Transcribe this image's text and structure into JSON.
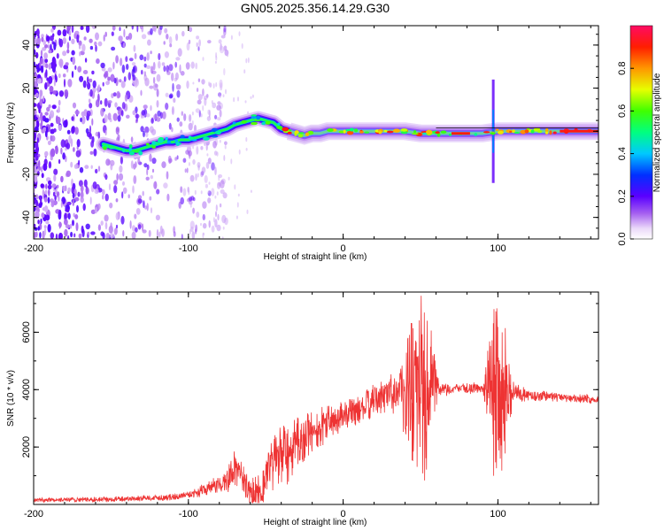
{
  "chart_data": [
    {
      "type": "heatmap",
      "title": "GN05.2025.356.14.29.G30",
      "xlabel": "Height of straight line (km)",
      "ylabel": "Frequency (Hz)",
      "xlim": [
        -200,
        165
      ],
      "ylim": [
        -50,
        49
      ],
      "xticks": [
        -200,
        -100,
        0,
        100
      ],
      "yticks": [
        -40,
        -20,
        0,
        20,
        40
      ],
      "ridge": {
        "x": [
          -155,
          -150,
          -145,
          -140,
          -135,
          -130,
          -125,
          -120,
          -115,
          -110,
          -105,
          -100,
          -95,
          -90,
          -85,
          -80,
          -75,
          -70,
          -65,
          -60,
          -55,
          -50,
          -45,
          -40,
          -35,
          -30,
          -25,
          -20,
          -15,
          -10,
          -5,
          0,
          10,
          20,
          30,
          40,
          50,
          60,
          70,
          80,
          90,
          100,
          110,
          120,
          130,
          140,
          150,
          160,
          165
        ],
        "freq": [
          -6,
          -7,
          -8,
          -9,
          -9,
          -8,
          -7,
          -6,
          -5,
          -5,
          -4,
          -4,
          -3,
          -2,
          -1,
          0,
          1,
          3,
          4,
          5,
          6,
          5,
          4,
          1,
          0,
          -1,
          -2,
          -1,
          -1,
          0,
          0,
          0,
          0,
          0,
          0,
          0,
          -1,
          -1,
          -1,
          -1,
          -1,
          0,
          0,
          0,
          0,
          0,
          0,
          0,
          0
        ]
      },
      "colorbar": {
        "label": "Normalized spectral amplitude",
        "range": [
          0,
          1
        ],
        "ticks": [
          0.0,
          0.2,
          0.4,
          0.6,
          0.8
        ],
        "tick_labels": [
          "0.0",
          "0.2",
          "0.4",
          "0.6",
          "0.8"
        ]
      }
    },
    {
      "type": "line",
      "xlabel": "Height of straight line (km)",
      "ylabel": "SNR (10 * v/v)",
      "xlim": [
        -200,
        165
      ],
      "ylim": [
        0,
        7400
      ],
      "xticks": [
        -200,
        -100,
        0,
        100
      ],
      "yticks": [
        2000,
        4000,
        6000
      ],
      "series": [
        {
          "name": "SNR",
          "color": "#ee3333",
          "envelope_x": [
            -200,
            -150,
            -110,
            -95,
            -85,
            -75,
            -70,
            -65,
            -60,
            -55,
            -50,
            -45,
            -40,
            -35,
            -30,
            -25,
            -20,
            -15,
            -10,
            -5,
            0,
            10,
            20,
            30,
            38,
            42,
            45,
            48,
            50,
            52,
            55,
            58,
            60,
            70,
            80,
            90,
            95,
            98,
            100,
            102,
            105,
            108,
            110,
            120,
            140,
            165
          ],
          "envelope_y": [
            150,
            180,
            250,
            400,
            600,
            800,
            1300,
            900,
            400,
            500,
            900,
            1500,
            1700,
            1800,
            2000,
            2300,
            2500,
            2700,
            2900,
            3000,
            3100,
            3300,
            3600,
            3900,
            4100,
            4000,
            4200,
            4000,
            4100,
            4000,
            4050,
            4050,
            4000,
            4000,
            4050,
            4050,
            4100,
            4000,
            4200,
            3900,
            4000,
            3900,
            3900,
            3800,
            3750,
            3650
          ],
          "amplitude_x": [
            -200,
            -100,
            -80,
            -70,
            -60,
            -50,
            -40,
            -30,
            -20,
            0,
            30,
            38,
            40,
            45,
            50,
            55,
            58,
            62,
            70,
            90,
            95,
            98,
            100,
            103,
            106,
            110,
            120,
            165
          ],
          "amplitude_y": [
            60,
            100,
            250,
            500,
            400,
            700,
            900,
            900,
            700,
            400,
            500,
            900,
            1800,
            2600,
            2800,
            2500,
            1500,
            300,
            150,
            150,
            1500,
            2800,
            3000,
            2800,
            1500,
            300,
            150,
            120
          ]
        }
      ]
    }
  ]
}
